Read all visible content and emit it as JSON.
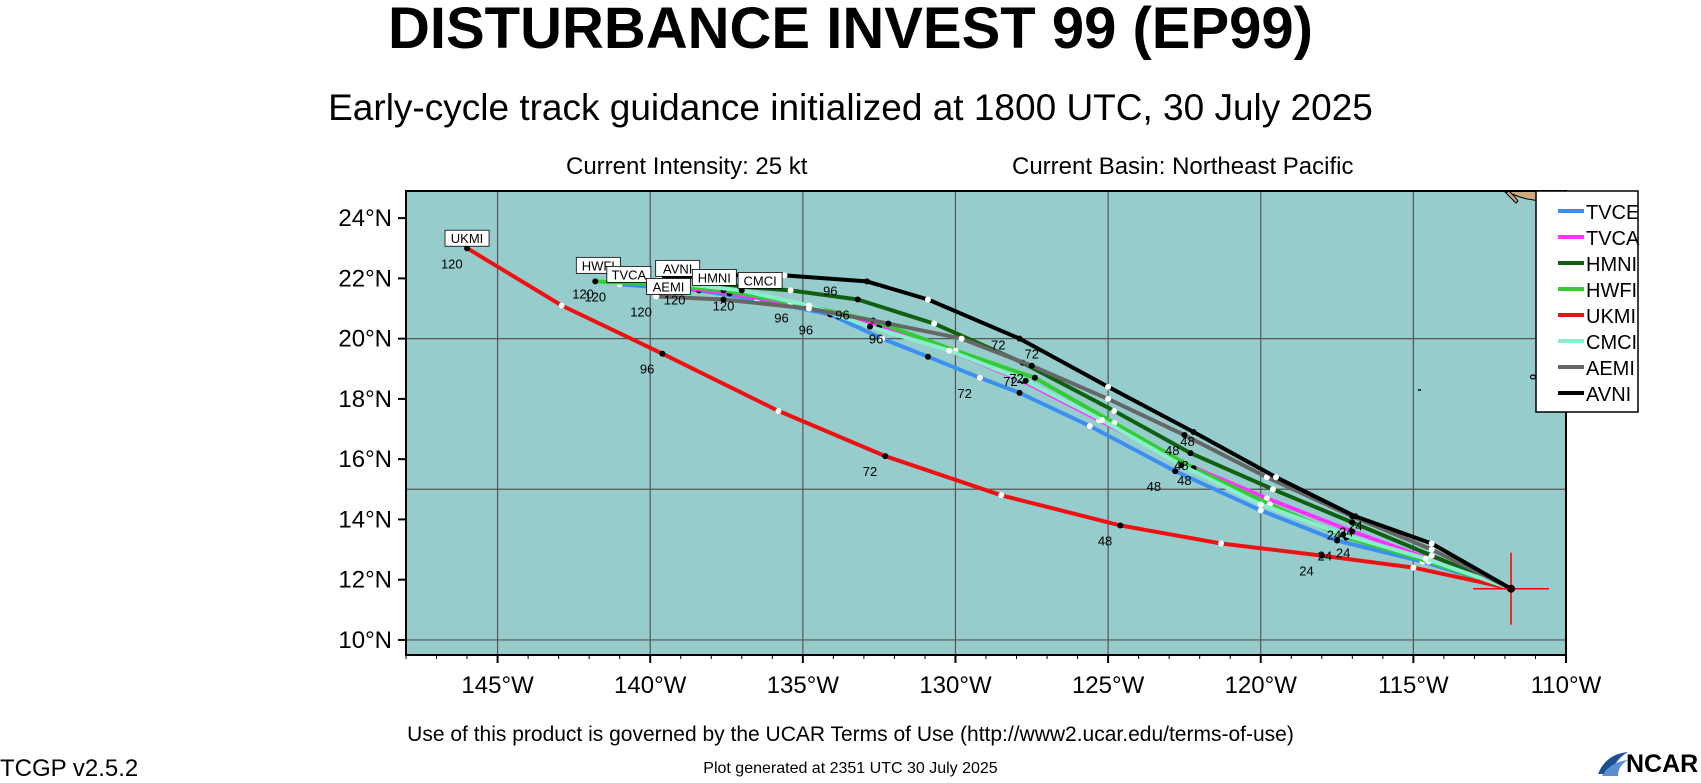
{
  "header": {
    "title": "DISTURBANCE INVEST 99 (EP99)",
    "subtitle": "Early-cycle track guidance initialized at 1800 UTC, 30 July 2025",
    "intensity": "Current Intensity: 25 kt",
    "basin": "Current Basin: Northeast Pacific"
  },
  "footer": {
    "terms": "Use of this product is governed by the UCAR Terms of Use (http://www2.ucar.edu/terms-of-use)",
    "version": "TCGP v2.5.2",
    "generated": "Plot generated at 2351 UTC   30 July 2025",
    "logo": "NCAR"
  },
  "colors": {
    "ocean": "#97cccc",
    "land": "#cdaa80",
    "grid": "#555555",
    "current_position": "#ff0000"
  },
  "chart_data": {
    "type": "map-track",
    "lon_range": [
      -148,
      -110
    ],
    "lat_range": [
      9.5,
      24.9
    ],
    "lon_ticks": [
      -145,
      -140,
      -135,
      -130,
      -125,
      -120,
      -115,
      -110
    ],
    "lat_ticks": [
      10,
      12,
      14,
      16,
      18,
      20,
      22,
      24
    ],
    "lon_labels": [
      "145°W",
      "140°W",
      "135°W",
      "130°W",
      "125°W",
      "120°W",
      "115°W",
      "110°W"
    ],
    "lat_labels": [
      "10°N",
      "12°N",
      "14°N",
      "16°N",
      "18°N",
      "20°N",
      "22°N",
      "24°N"
    ],
    "current_position": {
      "lon": -111.8,
      "lat": 11.7
    },
    "models": [
      {
        "name": "TVCE",
        "color": "#3b8ff0",
        "points": [
          [
            -111.8,
            11.7
          ],
          [
            -114.7,
            12.6
          ],
          [
            -117.5,
            13.3
          ],
          [
            -120,
            14.3
          ],
          [
            -122.8,
            15.6
          ],
          [
            -125.6,
            17.1
          ],
          [
            -127.9,
            18.2
          ],
          [
            -129.2,
            18.7
          ],
          [
            -130.9,
            19.4
          ],
          [
            -132.4,
            20
          ],
          [
            -134.1,
            20.8
          ],
          [
            -136.5,
            21.3
          ],
          [
            -138.4,
            21.6
          ],
          [
            -141,
            21.8
          ]
        ],
        "labels": [
          {
            "text": "24",
            "lon": -117.9,
            "lat": 13.1
          },
          {
            "text": "48",
            "lon": -123.5,
            "lat": 15.4
          },
          {
            "text": "72",
            "lon": -129.7,
            "lat": 18.5
          },
          {
            "text": "96",
            "lon": -134.9,
            "lat": 20.6
          },
          {
            "text": "120",
            "lon": -141.8,
            "lat": 21.7
          }
        ]
      },
      {
        "name": "TVCA",
        "color": "#ff33ff",
        "points": [
          [
            -111.8,
            11.7
          ],
          [
            -114.5,
            12.7
          ],
          [
            -117,
            13.6
          ],
          [
            -119.8,
            14.7
          ],
          [
            -122.6,
            15.9
          ],
          [
            -125.3,
            17.3
          ],
          [
            -127.8,
            18.6
          ],
          [
            -130.2,
            19.6
          ],
          [
            -132.5,
            20.4
          ],
          [
            -135,
            21.1
          ],
          [
            -137.4,
            21.5
          ],
          [
            -140.5,
            21.9
          ]
        ],
        "labels": []
      },
      {
        "name": "HMNI",
        "color": "#106010",
        "points": [
          [
            -111.8,
            11.7
          ],
          [
            -114.4,
            12.8
          ],
          [
            -117,
            13.9
          ],
          [
            -119.6,
            15
          ],
          [
            -122.3,
            16.2
          ],
          [
            -124.8,
            17.6
          ],
          [
            -127.8,
            19.2
          ],
          [
            -130.7,
            20.5
          ],
          [
            -133.2,
            21.3
          ],
          [
            -135.4,
            21.6
          ],
          [
            -138,
            21.8
          ]
        ],
        "labels": [
          {
            "text": "24",
            "lon": -117.6,
            "lat": 13.8
          },
          {
            "text": "48",
            "lon": -122.6,
            "lat": 16.1
          },
          {
            "text": "72",
            "lon": -128,
            "lat": 19
          },
          {
            "text": "96",
            "lon": -133.7,
            "lat": 21.1
          }
        ]
      },
      {
        "name": "HWFI",
        "color": "#33cc33",
        "points": [
          [
            -111.8,
            11.7
          ],
          [
            -114.5,
            12.6
          ],
          [
            -117.2,
            13.4
          ],
          [
            -119.7,
            14.5
          ],
          [
            -122.2,
            15.7
          ],
          [
            -124.8,
            17.2
          ],
          [
            -127.4,
            18.7
          ],
          [
            -130,
            19.6
          ],
          [
            -132.7,
            20.6
          ],
          [
            -135.4,
            21.2
          ],
          [
            -137.6,
            21.6
          ],
          [
            -139.6,
            21.8
          ],
          [
            -141.8,
            21.9
          ]
        ],
        "labels": [
          {
            "text": "24",
            "lon": -117.3,
            "lat": 13.2
          },
          {
            "text": "48",
            "lon": -122.5,
            "lat": 15.6
          },
          {
            "text": "72",
            "lon": -128.2,
            "lat": 18.9
          },
          {
            "text": "96",
            "lon": -135.7,
            "lat": 21
          },
          {
            "text": "120",
            "lon": -142.2,
            "lat": 21.8
          }
        ]
      },
      {
        "name": "UKMI",
        "color": "#ee1111",
        "points": [
          [
            -111.8,
            11.7
          ],
          [
            -115,
            12.4
          ],
          [
            -118,
            12.8
          ],
          [
            -121.3,
            13.2
          ],
          [
            -124.6,
            13.8
          ],
          [
            -128.5,
            14.8
          ],
          [
            -132.3,
            16.1
          ],
          [
            -135.8,
            17.6
          ],
          [
            -139.6,
            19.5
          ],
          [
            -142.9,
            21.1
          ],
          [
            -146,
            23
          ]
        ],
        "labels": [
          {
            "text": "24",
            "lon": -118.5,
            "lat": 12.6
          },
          {
            "text": "48",
            "lon": -125.1,
            "lat": 13.6
          },
          {
            "text": "72",
            "lon": -132.8,
            "lat": 15.9
          },
          {
            "text": "96",
            "lon": -140.1,
            "lat": 19.3
          },
          {
            "text": "120",
            "lon": -146.5,
            "lat": 22.8
          }
        ]
      },
      {
        "name": "CMCI",
        "color": "#88eecc",
        "points": [
          [
            -111.8,
            11.7
          ],
          [
            -114.6,
            12.7
          ],
          [
            -117.3,
            13.5
          ],
          [
            -120,
            14.5
          ],
          [
            -122.6,
            15.8
          ],
          [
            -125.2,
            17.3
          ],
          [
            -127.7,
            18.6
          ],
          [
            -130.2,
            19.6
          ],
          [
            -132.8,
            20.4
          ],
          [
            -134.8,
            21.1
          ],
          [
            -137,
            21.6
          ],
          [
            -138.8,
            21.8
          ]
        ],
        "labels": [
          {
            "text": "120",
            "lon": -137.6,
            "lat": 21.4
          }
        ]
      },
      {
        "name": "AEMI",
        "color": "#666666",
        "points": [
          [
            -111.8,
            11.7
          ],
          [
            -114.4,
            13
          ],
          [
            -117,
            14.1
          ],
          [
            -119.8,
            15.4
          ],
          [
            -122.5,
            16.8
          ],
          [
            -125,
            18
          ],
          [
            -127.5,
            19.1
          ],
          [
            -129.8,
            20
          ],
          [
            -132.2,
            20.5
          ],
          [
            -134.8,
            21
          ],
          [
            -137.6,
            21.3
          ],
          [
            -139.8,
            21.4
          ]
        ],
        "labels": [
          {
            "text": "24",
            "lon": -117.2,
            "lat": 13.9
          },
          {
            "text": "48",
            "lon": -122.9,
            "lat": 16.6
          },
          {
            "text": "72",
            "lon": -128.6,
            "lat": 20.1
          },
          {
            "text": "96",
            "lon": -132.6,
            "lat": 20.3
          },
          {
            "text": "120",
            "lon": -140.3,
            "lat": 21.2
          }
        ]
      },
      {
        "name": "AVNI",
        "color": "#000000",
        "points": [
          [
            -111.8,
            11.7
          ],
          [
            -114.4,
            13.2
          ],
          [
            -116.9,
            14.1
          ],
          [
            -119.5,
            15.4
          ],
          [
            -122.2,
            16.9
          ],
          [
            -125,
            18.4
          ],
          [
            -127.9,
            20
          ],
          [
            -130.9,
            21.3
          ],
          [
            -132.9,
            21.9
          ],
          [
            -135.6,
            22.1
          ],
          [
            -137.8,
            22.1
          ],
          [
            -139.7,
            22
          ]
        ],
        "labels": [
          {
            "text": "24",
            "lon": -116.9,
            "lat": 14.1
          },
          {
            "text": "48",
            "lon": -122.4,
            "lat": 16.9
          },
          {
            "text": "72",
            "lon": -127.5,
            "lat": 19.8
          },
          {
            "text": "96",
            "lon": -134.1,
            "lat": 21.9
          },
          {
            "text": "120",
            "lon": -139.2,
            "lat": 21.6
          }
        ]
      }
    ],
    "box_labels": [
      {
        "text": "UKMI",
        "lon": -146,
        "lat": 23.1
      },
      {
        "text": "HWFI",
        "lon": -141.7,
        "lat": 22.2
      },
      {
        "text": "TVCA",
        "lon": -140.7,
        "lat": 21.9
      },
      {
        "text": "AVNI",
        "lon": -139.1,
        "lat": 22.1
      },
      {
        "text": "HMNI",
        "lon": -137.9,
        "lat": 21.8
      },
      {
        "text": "AEMI",
        "lon": -139.4,
        "lat": 21.5
      },
      {
        "text": "CMCI",
        "lon": -136.4,
        "lat": 21.7
      }
    ]
  }
}
